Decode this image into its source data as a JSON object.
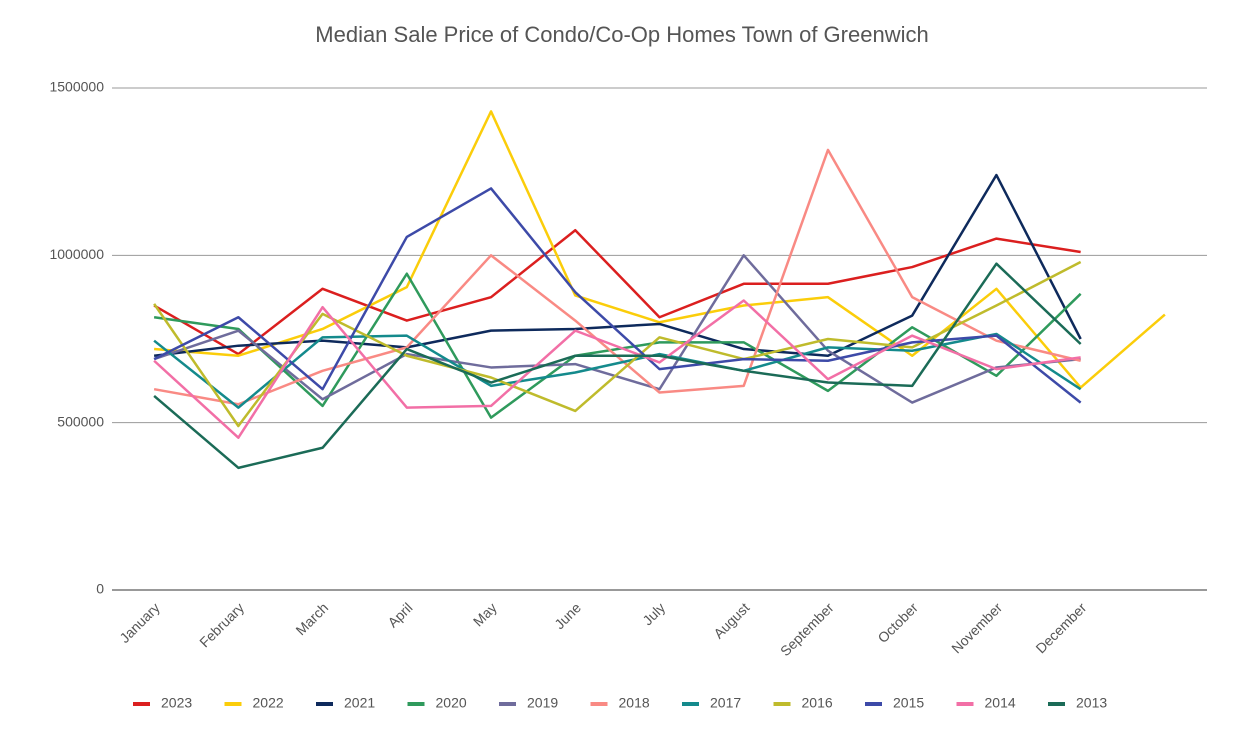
{
  "chart_data": {
    "type": "line",
    "title": "Median Sale Price of Condo/Co-Op Homes Town of Greenwich",
    "categories": [
      "January",
      "February",
      "March",
      "April",
      "May",
      "June",
      "July",
      "August",
      "September",
      "October",
      "November",
      "December",
      null
    ],
    "ylim": [
      0,
      1500000
    ],
    "yticks": [
      0,
      500000,
      1000000,
      1500000
    ],
    "grid": true,
    "legend": "bottom",
    "series": [
      {
        "name": "2023",
        "color": "#db1f1f",
        "values": [
          850000,
          705000,
          900000,
          805000,
          875000,
          1075000,
          815000,
          915000,
          915000,
          965000,
          1050000,
          1010000,
          null
        ]
      },
      {
        "name": "2022",
        "color": "#fbcd0a",
        "values": [
          720000,
          700000,
          780000,
          905000,
          1430000,
          880000,
          800000,
          850000,
          875000,
          700000,
          900000,
          605000,
          823000
        ]
      },
      {
        "name": "2021",
        "color": "#0e2a5c",
        "values": [
          700000,
          730000,
          745000,
          725000,
          775000,
          780000,
          795000,
          720000,
          700000,
          820000,
          1240000,
          750000,
          null
        ]
      },
      {
        "name": "2020",
        "color": "#2f9a5c",
        "values": [
          815000,
          780000,
          550000,
          945000,
          515000,
          700000,
          740000,
          740000,
          595000,
          785000,
          640000,
          885000,
          null
        ]
      },
      {
        "name": "2019",
        "color": "#6f6c9c",
        "values": [
          690000,
          775000,
          570000,
          705000,
          665000,
          675000,
          600000,
          1000000,
          715000,
          560000,
          665000,
          690000,
          null
        ]
      },
      {
        "name": "2018",
        "color": "#f98a84",
        "values": [
          600000,
          555000,
          655000,
          725000,
          1000000,
          805000,
          590000,
          610000,
          1315000,
          875000,
          745000,
          685000,
          null
        ]
      },
      {
        "name": "2017",
        "color": "#148a8c",
        "values": [
          745000,
          545000,
          755000,
          760000,
          610000,
          650000,
          705000,
          655000,
          725000,
          715000,
          765000,
          600000,
          null
        ]
      },
      {
        "name": "2016",
        "color": "#bfbb2c",
        "values": [
          855000,
          490000,
          825000,
          700000,
          635000,
          535000,
          755000,
          690000,
          750000,
          725000,
          850000,
          980000,
          null
        ]
      },
      {
        "name": "2015",
        "color": "#3d4aa8",
        "values": [
          690000,
          815000,
          600000,
          1055000,
          1200000,
          890000,
          660000,
          690000,
          685000,
          740000,
          760000,
          560000,
          null
        ]
      },
      {
        "name": "2014",
        "color": "#f26fa6",
        "values": [
          685000,
          455000,
          845000,
          545000,
          550000,
          775000,
          680000,
          865000,
          630000,
          760000,
          660000,
          695000,
          null
        ]
      },
      {
        "name": "2013",
        "color": "#1b6b57",
        "values": [
          580000,
          365000,
          425000,
          720000,
          620000,
          700000,
          700000,
          655000,
          620000,
          610000,
          975000,
          735000,
          null
        ]
      }
    ]
  }
}
